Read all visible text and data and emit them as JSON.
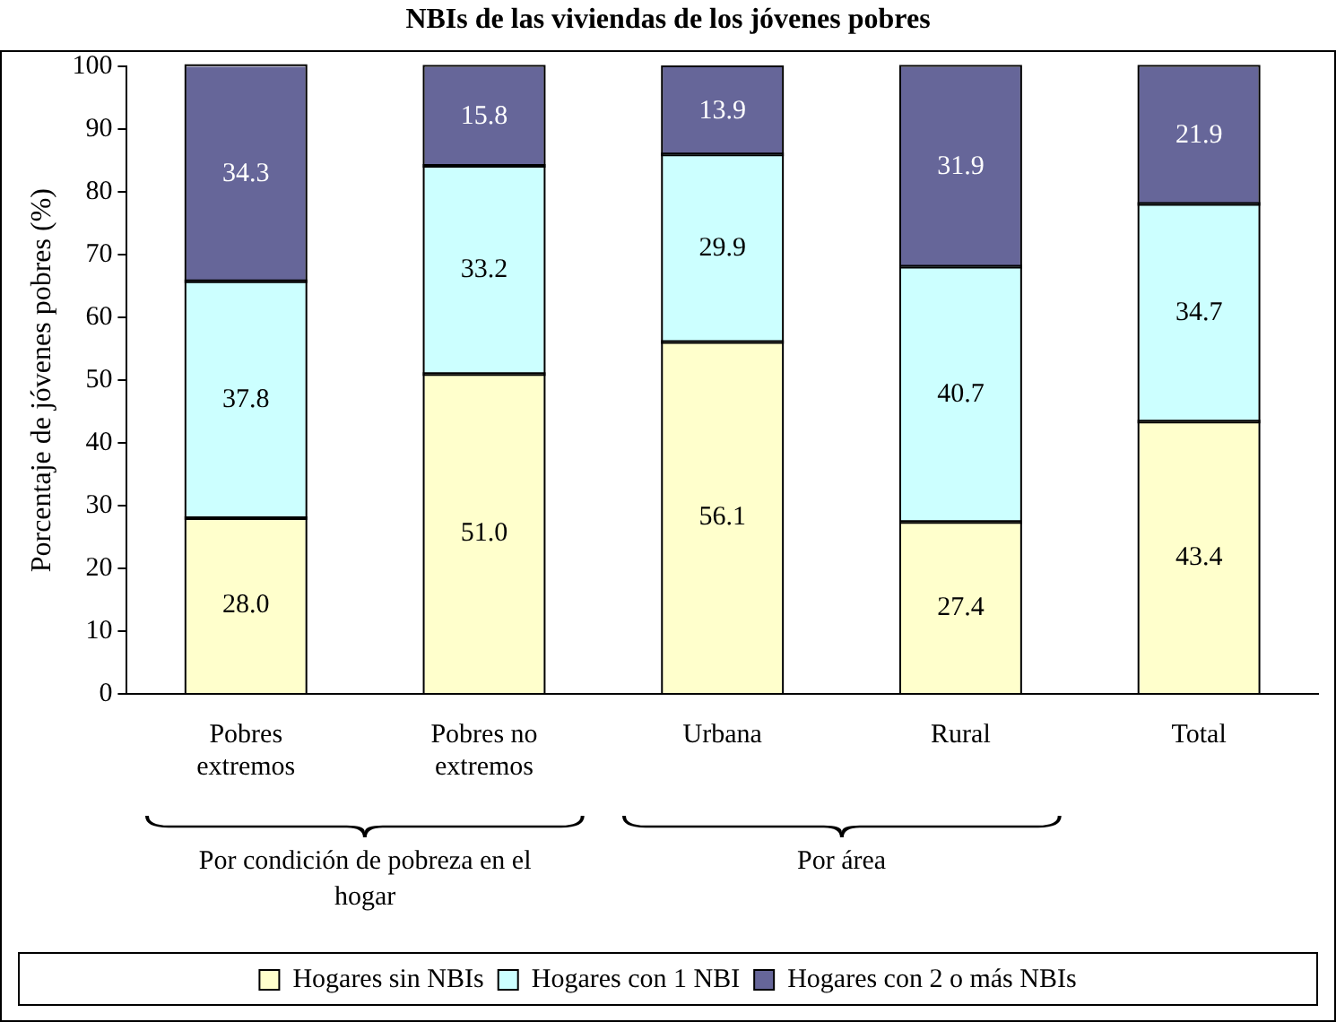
{
  "chart_data": {
    "type": "bar",
    "title": "NBIs de las viviendas de los jóvenes pobres",
    "ylabel": "Porcentaje de jóvenes pobres (%)",
    "categories": [
      "Pobres extremos",
      "Pobres no extremos",
      "Urbana",
      "Rural",
      "Total"
    ],
    "series": [
      {
        "name": "Hogares sin NBIs",
        "color": "#ffffcc",
        "values": [
          28.0,
          51.0,
          56.1,
          27.4,
          43.4
        ],
        "value_labels": [
          "28.0",
          "51.0",
          "56.1",
          "27.4",
          "43.4"
        ]
      },
      {
        "name": "Hogares con 1 NBI",
        "color": "#ccffff",
        "values": [
          37.8,
          33.2,
          29.9,
          40.7,
          34.7
        ],
        "value_labels": [
          "37.8",
          "33.2",
          "29.9",
          "40.7",
          "34.7"
        ]
      },
      {
        "name": "Hogares con 2 o más NBIs",
        "color": "#666699",
        "values": [
          34.3,
          15.8,
          13.9,
          31.9,
          21.9
        ],
        "value_labels": [
          "34.3",
          "15.8",
          "13.9",
          "31.9",
          "21.9"
        ]
      }
    ],
    "stacked": true,
    "ylim": [
      0,
      100
    ],
    "yticks": [
      0,
      10,
      20,
      30,
      40,
      50,
      60,
      70,
      80,
      90,
      100
    ],
    "grid": false,
    "legend": "bottom",
    "annotations": [
      "Por condición de pobreza en el hogar",
      "Por área"
    ]
  }
}
